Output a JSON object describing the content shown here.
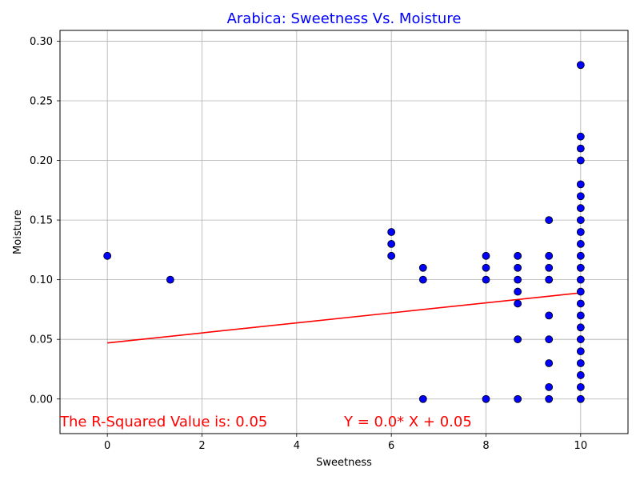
{
  "chart_data": {
    "type": "scatter",
    "title": "Arabica: Sweetness Vs. Moisture",
    "title_color": "#0000ff",
    "xlabel": "Sweetness",
    "ylabel": "Moisture",
    "xlim": [
      -1,
      11
    ],
    "ylim": [
      -0.029,
      0.309
    ],
    "xticks": [
      0,
      2,
      4,
      6,
      8,
      10
    ],
    "xtick_labels": [
      "0",
      "2",
      "4",
      "6",
      "8",
      "10"
    ],
    "yticks": [
      0.0,
      0.05,
      0.1,
      0.15,
      0.2,
      0.25,
      0.3
    ],
    "ytick_labels": [
      "0.00",
      "0.05",
      "0.10",
      "0.15",
      "0.20",
      "0.25",
      "0.30"
    ],
    "grid": true,
    "marker_color": "#0000ff",
    "marker_edge_color": "#000000",
    "points": [
      [
        0,
        0.12
      ],
      [
        1.33,
        0.1
      ],
      [
        6,
        0.14
      ],
      [
        6,
        0.13
      ],
      [
        6,
        0.12
      ],
      [
        6.67,
        0.11
      ],
      [
        6.67,
        0.1
      ],
      [
        6.67,
        0.0
      ],
      [
        8,
        0.12
      ],
      [
        8,
        0.11
      ],
      [
        8,
        0.1
      ],
      [
        8,
        0.0
      ],
      [
        8.67,
        0.12
      ],
      [
        8.67,
        0.11
      ],
      [
        8.67,
        0.1
      ],
      [
        8.67,
        0.09
      ],
      [
        8.67,
        0.08
      ],
      [
        8.67,
        0.05
      ],
      [
        8.67,
        0.0
      ],
      [
        9.33,
        0.15
      ],
      [
        9.33,
        0.12
      ],
      [
        9.33,
        0.11
      ],
      [
        9.33,
        0.1
      ],
      [
        9.33,
        0.07
      ],
      [
        9.33,
        0.05
      ],
      [
        9.33,
        0.03
      ],
      [
        9.33,
        0.01
      ],
      [
        9.33,
        0.0
      ],
      [
        10,
        0.28
      ],
      [
        10,
        0.22
      ],
      [
        10,
        0.21
      ],
      [
        10,
        0.2
      ],
      [
        10,
        0.18
      ],
      [
        10,
        0.17
      ],
      [
        10,
        0.16
      ],
      [
        10,
        0.15
      ],
      [
        10,
        0.14
      ],
      [
        10,
        0.13
      ],
      [
        10,
        0.12
      ],
      [
        10,
        0.11
      ],
      [
        10,
        0.1
      ],
      [
        10,
        0.09
      ],
      [
        10,
        0.08
      ],
      [
        10,
        0.07
      ],
      [
        10,
        0.06
      ],
      [
        10,
        0.05
      ],
      [
        10,
        0.04
      ],
      [
        10,
        0.03
      ],
      [
        10,
        0.02
      ],
      [
        10,
        0.01
      ],
      [
        10,
        0.0
      ]
    ],
    "trendline": {
      "color": "#ff0000",
      "x": [
        0,
        10
      ],
      "y": [
        0.047,
        0.089
      ]
    },
    "annotations": [
      {
        "text": "The R-Squared Value is: 0.05",
        "color": "#ff0000",
        "x": -1,
        "y": -0.019
      },
      {
        "text": "Y = 0.0* X + 0.05",
        "color": "#ff0000",
        "x": 5,
        "y": -0.019
      }
    ]
  }
}
